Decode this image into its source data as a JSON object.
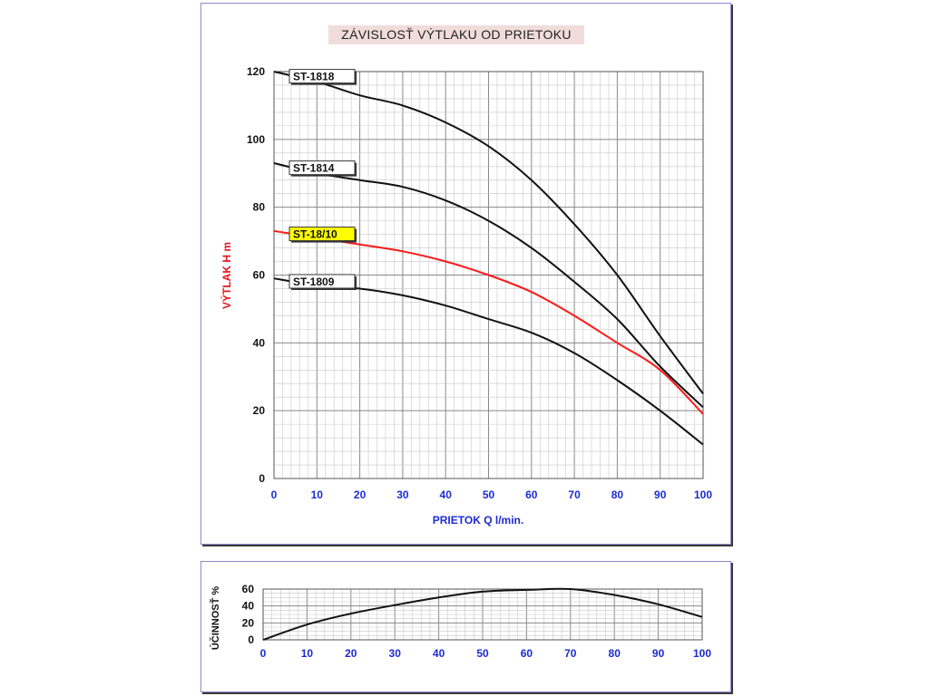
{
  "colors": {
    "axis_blue": "#1b2bd6",
    "ylabel_red": "#e8141e",
    "curve_black": "#111111",
    "curve_red": "#ff1a1a",
    "highlight_fill": "#ffff00",
    "label_fill": "#ffffff",
    "title_fill": "#f1dcdc",
    "grid_major": "#888888",
    "grid_minor": "#c8c8c8"
  },
  "chart_data": [
    {
      "type": "line",
      "title": "ZÁVISLOSŤ  VÝTLAKU  OD  PRIETOKU",
      "xlabel": "PRIETOK  Q   l/min.",
      "ylabel": "VÝTLAK   H   m",
      "xlim": [
        0,
        100
      ],
      "ylim": [
        0,
        120
      ],
      "x_ticks": [
        "0",
        "10",
        "20",
        "30",
        "40",
        "50",
        "60",
        "70",
        "80",
        "90",
        "100"
      ],
      "y_ticks": [
        "0",
        "20",
        "40",
        "60",
        "80",
        "100",
        "120"
      ],
      "grid": true,
      "series": [
        {
          "name": "ST-1818",
          "highlight": false,
          "x": [
            0,
            10,
            20,
            30,
            40,
            50,
            60,
            70,
            80,
            90,
            100
          ],
          "y": [
            120,
            117,
            113,
            110,
            105,
            98,
            88,
            75,
            60,
            42,
            25
          ]
        },
        {
          "name": "ST-1814",
          "highlight": false,
          "x": [
            0,
            10,
            20,
            30,
            40,
            50,
            60,
            70,
            80,
            90,
            100
          ],
          "y": [
            93,
            90,
            88,
            86,
            82,
            76,
            68,
            58,
            47,
            33,
            21
          ]
        },
        {
          "name": "ST-18/10",
          "highlight": true,
          "x": [
            0,
            10,
            20,
            30,
            40,
            50,
            60,
            70,
            80,
            90,
            100
          ],
          "y": [
            73,
            71,
            69,
            67,
            64,
            60,
            55,
            48,
            40,
            32,
            19
          ]
        },
        {
          "name": "ST-1809",
          "highlight": false,
          "x": [
            0,
            10,
            20,
            30,
            40,
            50,
            60,
            70,
            80,
            90,
            100
          ],
          "y": [
            59,
            57,
            56,
            54,
            51,
            47,
            43,
            37,
            29,
            20,
            10
          ]
        }
      ]
    },
    {
      "type": "line",
      "title": "",
      "xlabel": "",
      "ylabel": "ÚČINNOSŤ  %",
      "xlim": [
        0,
        100
      ],
      "ylim": [
        0,
        60
      ],
      "x_ticks": [
        "0",
        "10",
        "20",
        "30",
        "40",
        "50",
        "60",
        "70",
        "80",
        "90",
        "100"
      ],
      "y_ticks": [
        "0",
        "20",
        "40",
        "60"
      ],
      "grid": true,
      "series": [
        {
          "name": "účinnosť",
          "x": [
            0,
            10,
            20,
            30,
            40,
            50,
            60,
            70,
            80,
            90,
            100
          ],
          "y": [
            0,
            18,
            31,
            41,
            50,
            57,
            59,
            60,
            53,
            42,
            27
          ]
        }
      ]
    }
  ]
}
